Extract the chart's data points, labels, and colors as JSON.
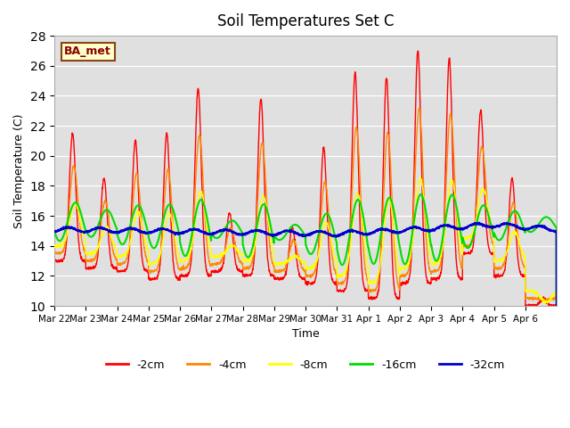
{
  "title": "Soil Temperatures Set C",
  "xlabel": "Time",
  "ylabel": "Soil Temperature (C)",
  "ylim": [
    10,
    28
  ],
  "yticks": [
    10,
    12,
    14,
    16,
    18,
    20,
    22,
    24,
    26,
    28
  ],
  "annotation_text": "BA_met",
  "series_colors": {
    "-2cm": "#ff0000",
    "-4cm": "#ff8800",
    "-8cm": "#ffff00",
    "-16cm": "#00dd00",
    "-32cm": "#0000cc"
  },
  "x_labels": [
    "Mar 22",
    "Mar 23",
    "Mar 24",
    "Mar 25",
    "Mar 26",
    "Mar 27",
    "Mar 28",
    "Mar 29",
    "Mar 30",
    "Mar 31",
    "Apr 1",
    "Apr 2",
    "Apr 3",
    "Apr 4",
    "Apr 5",
    "Apr 6"
  ],
  "num_days": 16,
  "pts_per_day": 144
}
